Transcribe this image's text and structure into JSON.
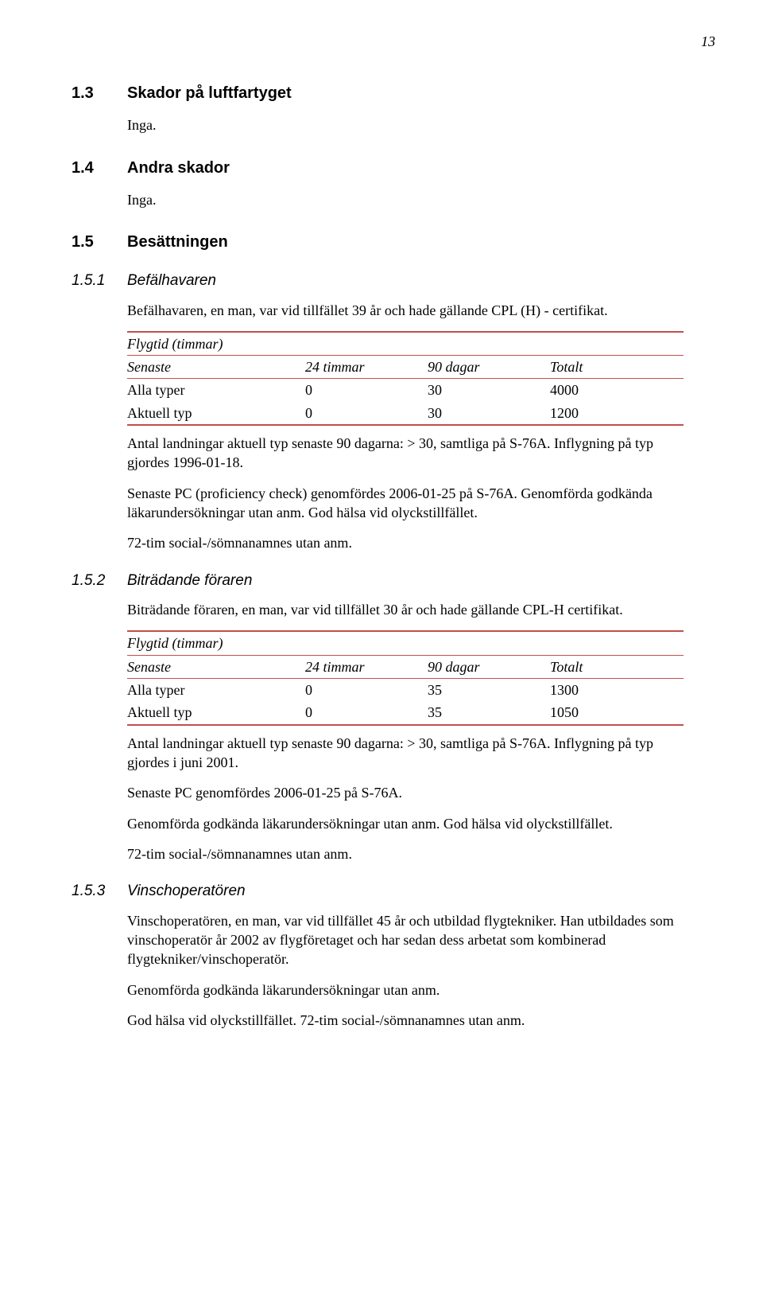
{
  "page_number": "13",
  "sections": {
    "s13": {
      "num": "1.3",
      "title": "Skador på luftfartyget",
      "body": "Inga."
    },
    "s14": {
      "num": "1.4",
      "title": "Andra skador",
      "body": "Inga."
    },
    "s15": {
      "num": "1.5",
      "title": "Besättningen"
    }
  },
  "sub151": {
    "num": "1.5.1",
    "title": "Befälhavaren",
    "intro": "Befälhavaren, en man, var vid tillfället 39 år och hade gällande CPL (H) - certifikat.",
    "table": {
      "title": "Flygtid (timmar)",
      "headers": {
        "c1": "Senaste",
        "c2": "24 timmar",
        "c3": "90 dagar",
        "c4": "Totalt"
      },
      "rows": [
        {
          "c1": "Alla typer",
          "c2": "0",
          "c3": "30",
          "c4": "4000"
        },
        {
          "c1": "Aktuell typ",
          "c2": "0",
          "c3": "30",
          "c4": "1200"
        }
      ]
    },
    "after": [
      "Antal landningar aktuell typ senaste 90 dagarna: > 30, samtliga på S-76A. Inflygning på typ gjordes 1996-01-18.",
      "Senaste PC (proficiency check) genomfördes 2006-01-25 på S-76A. Genomförda godkända läkarundersökningar utan anm. God hälsa vid olyckstillfället.",
      "72-tim social-/sömnanamnes utan anm."
    ]
  },
  "sub152": {
    "num": "1.5.2",
    "title": "Biträdande föraren",
    "intro": "Biträdande föraren, en man, var vid tillfället 30 år och hade gällande CPL-H certifikat.",
    "table": {
      "title": "Flygtid (timmar)",
      "headers": {
        "c1": "Senaste",
        "c2": "24 timmar",
        "c3": "90 dagar",
        "c4": "Totalt"
      },
      "rows": [
        {
          "c1": "Alla typer",
          "c2": "0",
          "c3": "35",
          "c4": "1300"
        },
        {
          "c1": "Aktuell typ",
          "c2": "0",
          "c3": "35",
          "c4": "1050"
        }
      ]
    },
    "after": [
      "Antal landningar aktuell typ senaste 90 dagarna: > 30, samtliga på S-76A. Inflygning på typ gjordes i juni 2001.",
      "Senaste PC genomfördes 2006-01-25 på S-76A.",
      "Genomförda godkända läkarundersökningar utan anm. God hälsa vid olyckstillfället.",
      "72-tim social-/sömnanamnes utan anm."
    ]
  },
  "sub153": {
    "num": "1.5.3",
    "title": "Vinschoperatören",
    "paras": [
      "Vinschoperatören, en man, var vid tillfället 45 år och utbildad flygtekniker. Han utbildades som vinschoperatör år 2002 av flygföretaget och har sedan dess arbetat som kombinerad flygtekniker/vinschoperatör.",
      "Genomförda godkända läkarundersökningar utan anm.",
      "God hälsa vid olyckstillfället. 72-tim social-/sömnanamnes utan anm."
    ]
  }
}
